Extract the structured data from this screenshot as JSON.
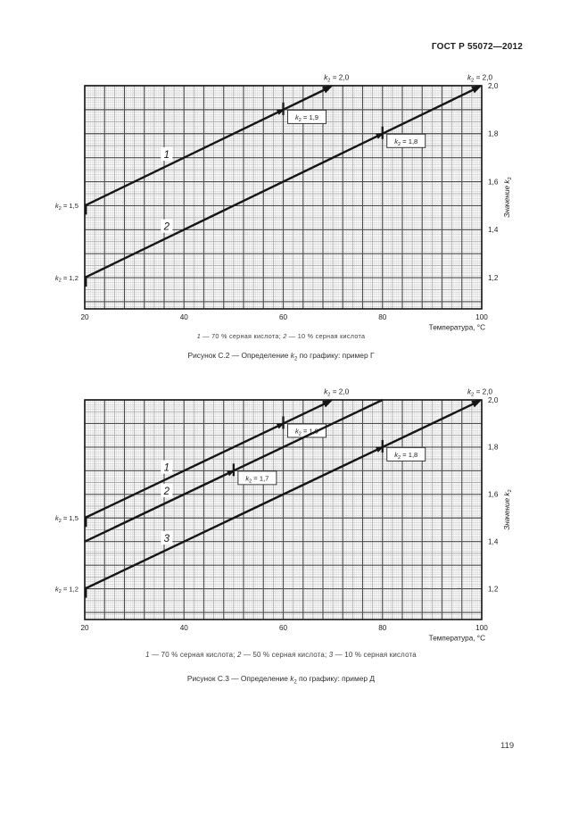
{
  "page": {
    "header": "ГОСТ Р 55072—2012",
    "page_number": "119"
  },
  "chart_data": [
    {
      "type": "line",
      "figure_caption": {
        "prefix": "Рисунок С.2 — Определение",
        "k_symbol": "k₂",
        "suffix": "по графику: пример Г"
      },
      "legend_joiner": " — ",
      "legend_separator": "; ",
      "legend": [
        {
          "num": "1",
          "text": "70 % серная кислота"
        },
        {
          "num": "2",
          "text": "10 % серная кислота"
        }
      ],
      "xlabel": "Температура, °С",
      "ylabel": "Значение k₂",
      "xlim": [
        20,
        100
      ],
      "ylim": [
        1.07,
        2.0
      ],
      "x_ticks": [
        {
          "v": 20,
          "label": "20"
        },
        {
          "v": 40,
          "label": "40"
        },
        {
          "v": 60,
          "label": "60"
        },
        {
          "v": 80,
          "label": "80"
        },
        {
          "v": 100,
          "label": "100"
        }
      ],
      "y_ticks": [
        {
          "v": 2.0,
          "label": "2,0"
        },
        {
          "v": 1.8,
          "label": "1,8"
        },
        {
          "v": 1.6,
          "label": "1,6"
        },
        {
          "v": 1.4,
          "label": "1,4"
        },
        {
          "v": 1.2,
          "label": "1,2"
        }
      ],
      "series": [
        {
          "num": "1",
          "name": "70 % серная кислота",
          "points": [
            {
              "t": 20,
              "k": 1.5
            },
            {
              "t": 70,
              "k": 2.0
            }
          ],
          "end_arrow": true,
          "end_label": "k₂ = 2,0",
          "start_tick": true,
          "start_label": "k₂ = 1,5",
          "marks": [
            {
              "t": 60,
              "k": 1.9,
              "label": "k₂ = 1,9"
            }
          ],
          "num_label_t": 36.5
        },
        {
          "num": "2",
          "name": "10 % серная кислота",
          "points": [
            {
              "t": 20,
              "k": 1.2
            },
            {
              "t": 100,
              "k": 2.0
            }
          ],
          "end_arrow": true,
          "end_label": "k₂ = 2,0",
          "start_tick": true,
          "start_label": "k₂ = 1,2",
          "marks": [
            {
              "t": 80,
              "k": 1.8,
              "label": "k₂ = 1,8"
            }
          ],
          "num_label_t": 36.5
        }
      ]
    },
    {
      "type": "line",
      "figure_caption": {
        "prefix": "Рисунок С.3 — Определение",
        "k_symbol": "k₂",
        "suffix": "по графику: пример Д"
      },
      "legend_joiner": " — ",
      "legend_separator": "; ",
      "legend": [
        {
          "num": "1",
          "text": "70 % серная кислота"
        },
        {
          "num": "2",
          "text": "50 % серная кислота"
        },
        {
          "num": "3",
          "text": "10 % серная кислота"
        }
      ],
      "xlabel": "Температура, °С",
      "ylabel": "Значение k₂",
      "xlim": [
        20,
        100
      ],
      "ylim": [
        1.07,
        2.0
      ],
      "x_ticks": [
        {
          "v": 20,
          "label": "20"
        },
        {
          "v": 40,
          "label": "40"
        },
        {
          "v": 60,
          "label": "60"
        },
        {
          "v": 80,
          "label": "80"
        },
        {
          "v": 100,
          "label": "100"
        }
      ],
      "y_ticks": [
        {
          "v": 2.0,
          "label": "2,0"
        },
        {
          "v": 1.8,
          "label": "1,8"
        },
        {
          "v": 1.6,
          "label": "1,6"
        },
        {
          "v": 1.4,
          "label": "1,4"
        },
        {
          "v": 1.2,
          "label": "1,2"
        }
      ],
      "series": [
        {
          "num": "1",
          "name": "70 % серная кислота",
          "points": [
            {
              "t": 20,
              "k": 1.5
            },
            {
              "t": 70,
              "k": 2.0
            }
          ],
          "end_arrow": true,
          "end_label": "k₂ = 2,0",
          "start_tick": true,
          "start_label": "k₂ = 1,5",
          "marks": [
            {
              "t": 60,
              "k": 1.9,
              "label": "k₂ = 1,9"
            }
          ],
          "num_label_t": 36.5
        },
        {
          "num": "2",
          "name": "50 % серная кислота",
          "points": [
            {
              "t": 20,
              "k": 1.4
            },
            {
              "t": 80,
              "k": 2.0
            }
          ],
          "end_arrow": false,
          "end_label": null,
          "start_tick": false,
          "start_label": null,
          "marks": [
            {
              "t": 50,
              "k": 1.7,
              "label": "k₂ = 1,7"
            }
          ],
          "num_label_t": 36.5
        },
        {
          "num": "3",
          "name": "10 % серная кислота",
          "points": [
            {
              "t": 20,
              "k": 1.2
            },
            {
              "t": 100,
              "k": 2.0
            }
          ],
          "end_arrow": true,
          "end_label": "k₂ = 2,0",
          "start_tick": true,
          "start_label": "k₂ = 1,2",
          "marks": [
            {
              "t": 80,
              "k": 1.8,
              "label": "k₂ = 1,8"
            }
          ],
          "num_label_t": 36.5
        }
      ]
    }
  ]
}
